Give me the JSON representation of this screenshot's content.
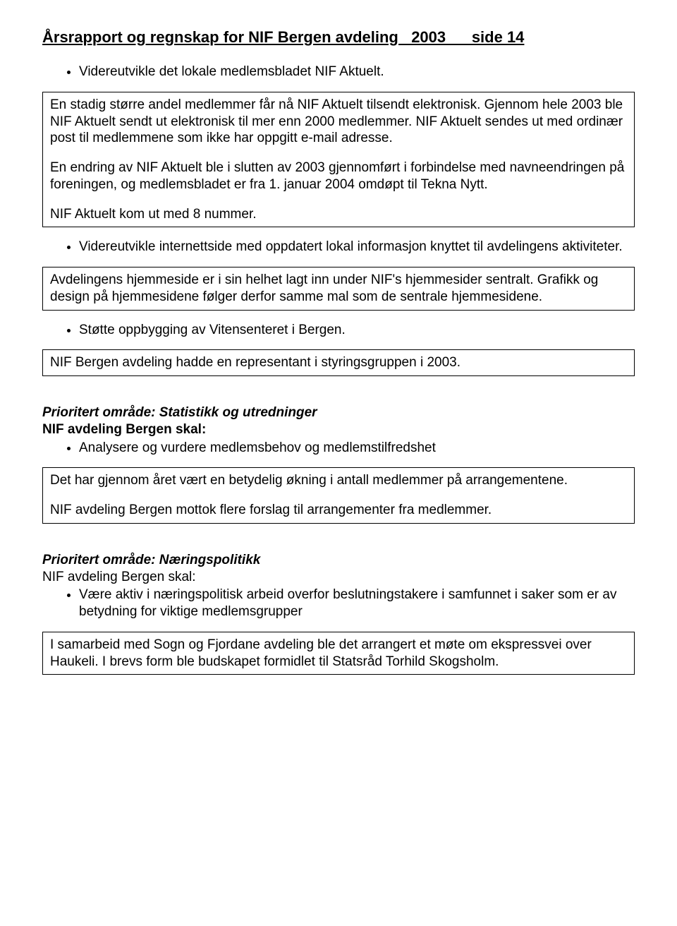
{
  "colors": {
    "text": "#000000",
    "background": "#ffffff",
    "border": "#000000"
  },
  "typography": {
    "title_fontsize": 22,
    "body_fontsize": 19,
    "font_family": "Arial"
  },
  "title": "Årsrapport og regnskap for NIF Bergen avdeling   2003      side 14",
  "bullet1": "Videreutvikle det lokale medlemsbladet NIF Aktuelt.",
  "box1": {
    "p1": "En stadig større andel medlemmer får nå NIF Aktuelt tilsendt elektronisk. Gjennom hele 2003 ble NIF Aktuelt sendt ut elektronisk til mer enn 2000 medlemmer. NIF Aktuelt sendes ut med ordinær post til medlemmene som ikke har oppgitt e-mail adresse.",
    "p2": "En endring av NIF Aktuelt ble i slutten av 2003 gjennomført i forbindelse med navneendringen på foreningen, og medlemsbladet er fra 1. januar 2004 omdøpt til Tekna Nytt.",
    "p3": "NIF Aktuelt kom ut med 8 nummer."
  },
  "bullet2": "Videreutvikle internettside med oppdatert lokal informasjon knyttet til avdelingens aktiviteter.",
  "box2": {
    "p1": "Avdelingens hjemmeside er i sin helhet lagt inn under NIF's hjemmesider sentralt. Grafikk og design på hjemmesidene følger derfor samme mal som de sentrale hjemmesidene."
  },
  "bullet3": "Støtte oppbygging av Vitensenteret i Bergen.",
  "box3": {
    "p1": "NIF Bergen avdeling hadde en representant i styringsgruppen i 2003."
  },
  "section2": {
    "heading_italic": "Prioritert område: Statistikk og utredninger",
    "heading_bold": "NIF avdeling Bergen skal:",
    "bullet1": "Analysere og vurdere medlemsbehov og medlemstilfredshet"
  },
  "box4": {
    "p1": "Det har gjennom året vært en betydelig økning i antall medlemmer på arrangementene.",
    "p2": "NIF avdeling Bergen mottok flere forslag til arrangementer fra medlemmer."
  },
  "section3": {
    "heading_italic": "Prioritert område: Næringspolitikk",
    "heading_bold": "NIF avdeling Bergen skal:",
    "bullet1": "Være aktiv i næringspolitisk arbeid overfor beslutningstakere i samfunnet i saker som er av betydning for viktige medlemsgrupper"
  },
  "box5": {
    "p1": "I samarbeid med Sogn og Fjordane avdeling ble det arrangert et møte om ekspressvei over Haukeli. I brevs form ble budskapet formidlet til Statsråd Torhild Skogsholm."
  }
}
